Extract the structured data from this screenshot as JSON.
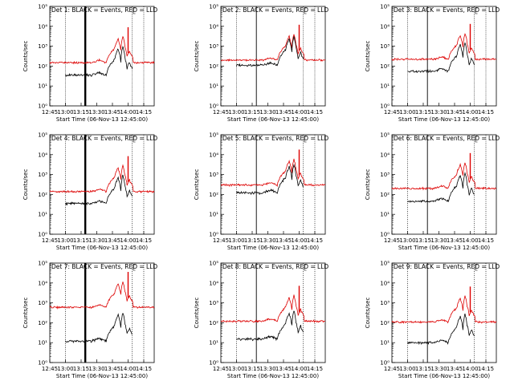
{
  "chart_data": {
    "type": "line",
    "grid_rows": 3,
    "grid_cols": 3,
    "xlabel": "Start Time (06-Nov-13 12:45:00)",
    "ylabel": "Counts/sec",
    "yscale": "log",
    "ylim": [
      1,
      100000
    ],
    "y_ticks": [
      "10⁰",
      "10¹",
      "10²",
      "10³",
      "10⁴",
      "10⁵"
    ],
    "xlim_minutes": [
      0,
      100
    ],
    "x_tick_minutes": [
      0,
      15,
      30,
      45,
      60,
      75,
      90
    ],
    "x_ticks": [
      "12:45",
      "13:00",
      "13:15",
      "13:30",
      "13:45",
      "14:00",
      "14:15"
    ],
    "series_colors": {
      "events": "#000000",
      "lld": "#dd0000"
    },
    "markers": {
      "dotted_minutes": [
        15,
        79,
        90
      ],
      "solid_minutes": [
        34
      ],
      "solid_thick_minutes": [
        34
      ]
    },
    "panels": [
      {
        "title": "Det 1: BLACK = Events, RED = LLD",
        "lld_base": 150,
        "ev_base": 35,
        "thick": true
      },
      {
        "title": "Det 2: BLACK = Events, RED = LLD",
        "lld_base": 200,
        "ev_base": 110,
        "thick": false
      },
      {
        "title": "Det 3: BLACK = Events, RED = LLD",
        "lld_base": 220,
        "ev_base": 55,
        "thick": false
      },
      {
        "title": "Det 4: BLACK = Events, RED = LLD",
        "lld_base": 140,
        "ev_base": 35,
        "thick": true
      },
      {
        "title": "Det 5: BLACK = Events, RED = LLD",
        "lld_base": 300,
        "ev_base": 120,
        "thick": false
      },
      {
        "title": "Det 6: BLACK = Events, RED = LLD",
        "lld_base": 200,
        "ev_base": 45,
        "thick": false
      },
      {
        "title": "Det 7: BLACK = Events, RED = LLD",
        "lld_base": 600,
        "ev_base": 12,
        "thick": true
      },
      {
        "title": "Det 8: BLACK = Events, RED = LLD",
        "lld_base": 120,
        "ev_base": 15,
        "thick": false
      },
      {
        "title": "Det 9: BLACK = Events, RED = LLD",
        "lld_base": 110,
        "ev_base": 10,
        "thick": false
      }
    ]
  }
}
